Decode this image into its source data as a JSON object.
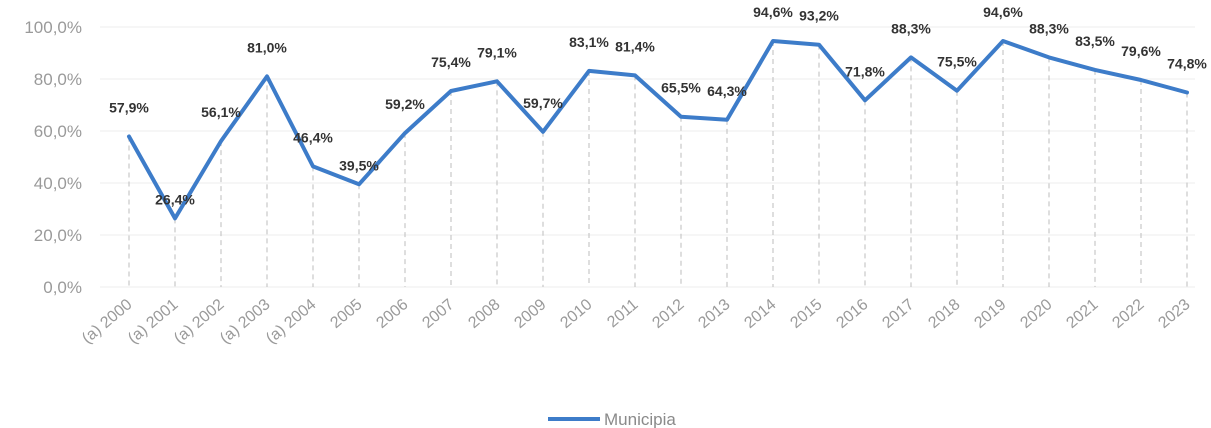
{
  "chart_data": {
    "type": "line",
    "categories": [
      "(a) 2000",
      "(a) 2001",
      "(a) 2002",
      "(a) 2003",
      "(a) 2004",
      "2005",
      "2006",
      "2007",
      "2008",
      "2009",
      "2010",
      "2011",
      "2012",
      "2013",
      "2014",
      "2015",
      "2016",
      "2017",
      "2018",
      "2019",
      "2020",
      "2021",
      "2022",
      "2023"
    ],
    "series": [
      {
        "name": "Municipia",
        "values": [
          57.9,
          26.4,
          56.1,
          81.0,
          46.4,
          39.5,
          59.2,
          75.4,
          79.1,
          59.7,
          83.1,
          81.4,
          65.5,
          64.3,
          94.6,
          93.2,
          71.8,
          88.3,
          75.5,
          94.6,
          88.3,
          83.5,
          79.6,
          74.8
        ],
        "labels": [
          "57,9%",
          "26,4%",
          "56,1%",
          "81,0%",
          "46,4%",
          "39,5%",
          "59,2%",
          "75,4%",
          "79,1%",
          "59,7%",
          "83,1%",
          "81,4%",
          "65,5%",
          "64,3%",
          "94,6%",
          "93,2%",
          "71,8%",
          "88,3%",
          "75,5%",
          "94,6%",
          "88,3%",
          "83,5%",
          "79,6%",
          "74,8%"
        ],
        "color": "#3d7cc9"
      }
    ],
    "yticks": [
      "0,0%",
      "20,0%",
      "40,0%",
      "60,0%",
      "80,0%",
      "100,0%"
    ],
    "ylim": [
      0,
      100
    ],
    "grid": true,
    "drop_lines": true,
    "legend_position": "bottom-center",
    "title": "",
    "xlabel": "",
    "ylabel": ""
  }
}
